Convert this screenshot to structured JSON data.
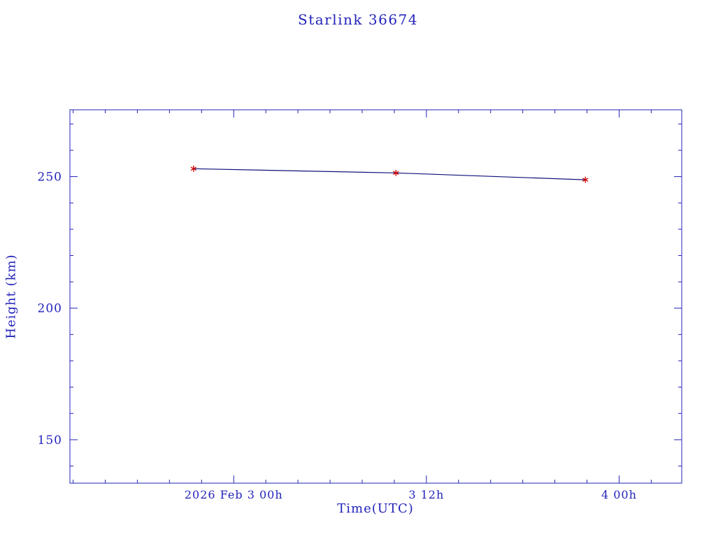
{
  "colors": {
    "axis": "#2323bb",
    "line": "#10107a",
    "marker": "#cc0000",
    "background": "#ffffff"
  },
  "chart_data": {
    "type": "line",
    "title": "Starlink 36674",
    "xlabel": "Time(UTC)",
    "ylabel": "Height (km)",
    "x_unit": "hours relative to 2026 Feb 3 00h UTC",
    "x": [
      -2.5,
      10.1,
      21.9
    ],
    "heights_km": [
      253.0,
      251.4,
      248.8
    ],
    "xlim": [
      -10.2,
      27.9
    ],
    "ylim": [
      133.5,
      275.4
    ],
    "x_major_ticks": [
      {
        "t": 0,
        "label": "2026 Feb 3 00h"
      },
      {
        "t": 12,
        "label": "3 12h"
      },
      {
        "t": 24,
        "label": "4 00h"
      }
    ],
    "y_major_ticks": [
      {
        "v": 150,
        "label": "150"
      },
      {
        "v": 200,
        "label": "200"
      },
      {
        "v": 250,
        "label": "250"
      }
    ],
    "x_minor_step_hours": 2,
    "y_minor_step_km": 10,
    "grid": false,
    "legend": false,
    "marker_style": "red asterisk"
  }
}
